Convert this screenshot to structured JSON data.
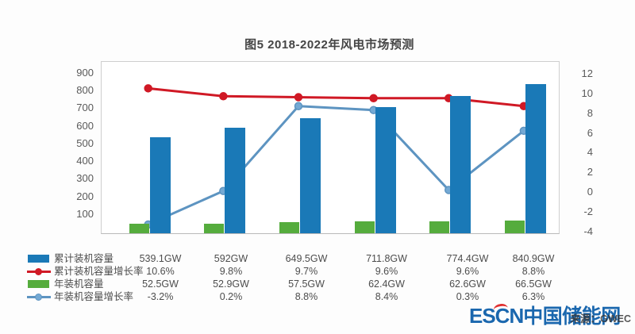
{
  "title": "图5 2018-2022年风电市场预测",
  "footer": {
    "brand_latin": "ESCN",
    "brand_cn": "中国储能网",
    "source_note": "来源：GWEC"
  },
  "colors": {
    "bar_cumulative": "#1a79b7",
    "line_cumulative_growth": "#d01925",
    "bar_annual": "#55ac3d",
    "line_annual_growth": "#5d94c1",
    "line_annual_dot": "#74a9d4",
    "axis_text": "#595959",
    "title_text": "#454545",
    "brand_blue": "#1a67ae",
    "brand_red": "#e03030",
    "plot_border": "#cfcfcf"
  },
  "chart_data": {
    "type": "combo-bar-line",
    "title": "图5 2018-2022年风电市场预测",
    "columns": 6,
    "grid": false,
    "legend_position": "bottom-table",
    "left_axis": {
      "ticks": [
        900,
        800,
        700,
        600,
        500,
        400,
        300,
        200,
        100
      ],
      "min": 0,
      "unit": "GW"
    },
    "right_axis": {
      "ticks": [
        12,
        10,
        8,
        6,
        4,
        2,
        0,
        -2,
        -4
      ],
      "min": -4,
      "max": 12,
      "unit": "%"
    },
    "series": [
      {
        "name": "累计装机容量",
        "type": "bar",
        "axis": "left",
        "color": "#1a79b7",
        "values": [
          539.1,
          592,
          649.5,
          711.8,
          774.4,
          840.9
        ],
        "labels": [
          "539.1GW",
          "592GW",
          "649.5GW",
          "711.8GW",
          "774.4GW",
          "840.9GW"
        ]
      },
      {
        "name": "累计装机容量增长率",
        "type": "line",
        "axis": "right",
        "color": "#d01925",
        "values": [
          10.6,
          9.8,
          9.7,
          9.6,
          9.6,
          8.8
        ],
        "labels": [
          "10.6%",
          "9.8%",
          "9.7%",
          "9.6%",
          "9.6%",
          "8.8%"
        ]
      },
      {
        "name": "年装机容量",
        "type": "bar",
        "axis": "left",
        "color": "#55ac3d",
        "values": [
          52.5,
          52.9,
          57.5,
          62.4,
          62.6,
          66.5
        ],
        "labels": [
          "52.5GW",
          "52.9GW",
          "57.5GW",
          "62.4GW",
          "62.6GW",
          "66.5GW"
        ]
      },
      {
        "name": "年装机容量增长率",
        "type": "line",
        "axis": "right",
        "color": "#5d94c1",
        "values": [
          -3.2,
          0.2,
          8.8,
          8.4,
          0.3,
          6.3
        ],
        "labels": [
          "-3.2%",
          "0.2%",
          "8.8%",
          "8.4%",
          "0.3%",
          "6.3%"
        ]
      }
    ]
  }
}
